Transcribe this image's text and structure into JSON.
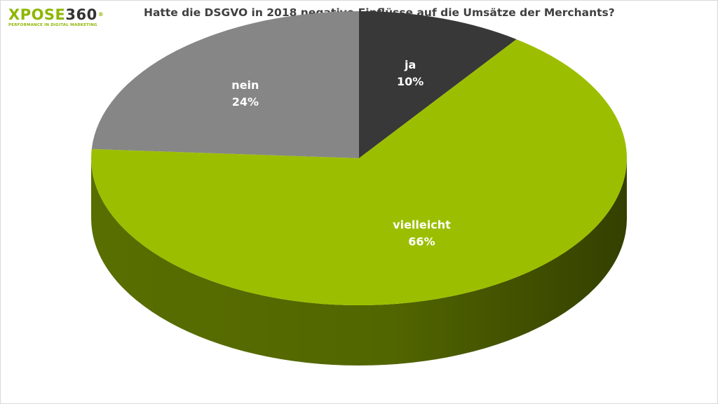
{
  "logo": {
    "main": "XPOSE",
    "number": "360",
    "registered": "®",
    "tagline": "PERFORMANCE IN DIGITAL MARKETING"
  },
  "chart_data": {
    "type": "pie",
    "title": "Hatte die DSGVO in 2018 negative Einflüsse auf die Umsätze der Merchants?",
    "categories": [
      "ja",
      "vielleicht",
      "nein"
    ],
    "values": [
      10,
      66,
      24
    ],
    "value_labels": [
      "10%",
      "66%",
      "24%"
    ],
    "colors": [
      "#383838",
      "#9bbf00",
      "#868686"
    ],
    "side_colors": [
      "#262626",
      "#5d7400",
      "#5a5a5a"
    ],
    "three_d": true,
    "start_angle_deg": 0,
    "direction": "clockwise"
  }
}
